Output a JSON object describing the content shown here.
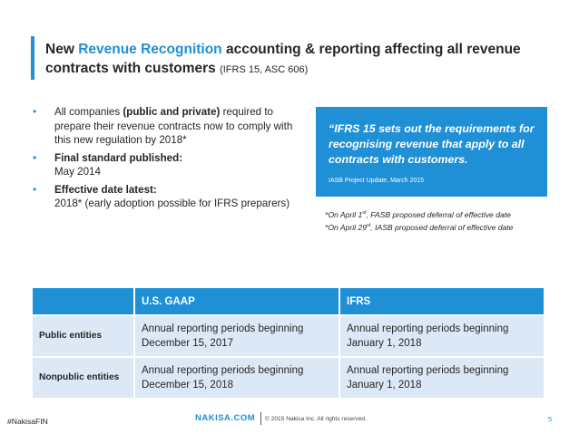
{
  "title": {
    "prefix": "New ",
    "highlight": "Revenue Recognition",
    "rest": " accounting & reporting affecting all revenue contracts with customers ",
    "source": "(IFRS 15, ASC 606)"
  },
  "bullets": [
    {
      "pre": "All companies ",
      "bold": "(public and private)",
      "post": " required to prepare their revenue contracts now to comply with this new regulation by 2018*"
    },
    {
      "pre": "",
      "bold": "Final standard published:",
      "post": "May 2014"
    },
    {
      "pre": "",
      "bold": "Effective date latest:",
      "post": "2018* (early adoption possible for IFRS preparers)"
    }
  ],
  "bullet_symbol": "•",
  "quote": {
    "text": "“IFRS 15 sets out the requirements for recognising revenue that apply to all contracts with customers.",
    "source": "IASB Project Update, March 2015"
  },
  "notes": {
    "line1_pre": "*On April 1",
    "line1_sup": "st",
    "line1_post": ", FASB proposed deferral of effective date",
    "line2_pre": "*On April 29",
    "line2_sup": "st",
    "line2_post": ", IASB proposed deferral of effective date"
  },
  "table": {
    "headers": [
      "",
      "U.S. GAAP",
      "IFRS"
    ],
    "rows": [
      {
        "label": "Public entities",
        "gaap": "Annual reporting periods beginning December 15, 2017",
        "ifrs": "Annual reporting periods beginning January 1, 2018"
      },
      {
        "label": "Nonpublic entities",
        "gaap": "Annual reporting periods beginning December 15, 2018",
        "ifrs": "Annual reporting periods beginning January 1, 2018"
      }
    ]
  },
  "footer": {
    "hashtag": "#NakisaFIN",
    "brand": "NAKISA.COM",
    "copyright": "© 2015 Nakisa Inc. All rights reserved.",
    "page": "5"
  },
  "colors": {
    "accent": "#1f8fd6",
    "table_cell": "#dde8f7"
  }
}
